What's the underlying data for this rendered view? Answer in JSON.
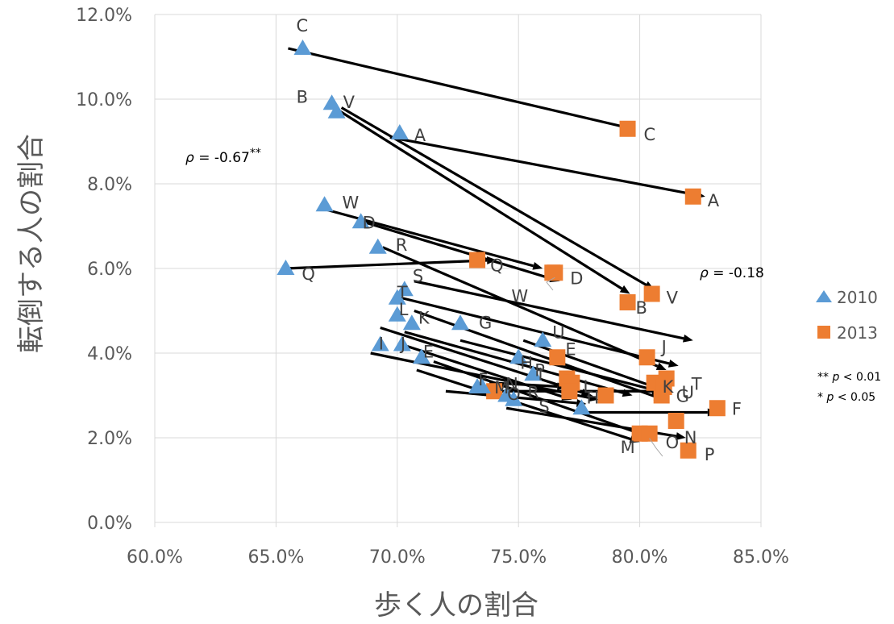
{
  "chart_data": {
    "type": "scatter",
    "xlabel": "歩く人の割合",
    "ylabel": "転倒する人の割合",
    "xlim": [
      0.6,
      0.85
    ],
    "ylim": [
      0.0,
      0.12
    ],
    "x_ticks": [
      "60.0%",
      "65.0%",
      "70.0%",
      "75.0%",
      "80.0%",
      "85.0%"
    ],
    "y_ticks": [
      "0.0%",
      "2.0%",
      "4.0%",
      "6.0%",
      "8.0%",
      "10.0%",
      "12.0%"
    ],
    "grid": "horizontal and vertical",
    "legend_position": "right",
    "colors": {
      "2010": "#5b9bd5",
      "2013": "#ed7d31",
      "arrow": "#000000"
    },
    "series": [
      {
        "name": "2010",
        "marker": "triangle",
        "points": [
          {
            "label": "A",
            "x": 0.701,
            "y": 0.092
          },
          {
            "label": "B",
            "x": 0.673,
            "y": 0.099
          },
          {
            "label": "C",
            "x": 0.661,
            "y": 0.112
          },
          {
            "label": "D",
            "x": 0.685,
            "y": 0.071
          },
          {
            "label": "E",
            "x": 0.71,
            "y": 0.039
          },
          {
            "label": "F",
            "x": 0.735,
            "y": 0.032
          },
          {
            "label": "G",
            "x": 0.726,
            "y": 0.047
          },
          {
            "label": "H",
            "x": 0.75,
            "y": 0.039
          },
          {
            "label": "I",
            "x": 0.693,
            "y": 0.042
          },
          {
            "label": "J",
            "x": 0.702,
            "y": 0.042
          },
          {
            "label": "K",
            "x": 0.706,
            "y": 0.047
          },
          {
            "label": "L",
            "x": 0.7,
            "y": 0.049
          },
          {
            "label": "M",
            "x": 0.733,
            "y": 0.032
          },
          {
            "label": "N",
            "x": 0.745,
            "y": 0.03
          },
          {
            "label": "O",
            "x": 0.748,
            "y": 0.029
          },
          {
            "label": "P",
            "x": 0.756,
            "y": 0.035
          },
          {
            "label": "Q",
            "x": 0.654,
            "y": 0.06
          },
          {
            "label": "R",
            "x": 0.692,
            "y": 0.065
          },
          {
            "label": "S",
            "x": 0.703,
            "y": 0.055
          },
          {
            "label": "T",
            "x": 0.7,
            "y": 0.053
          },
          {
            "label": "U",
            "x": 0.76,
            "y": 0.043
          },
          {
            "label": "V",
            "x": 0.675,
            "y": 0.097
          },
          {
            "label": "W",
            "x": 0.67,
            "y": 0.075
          },
          {
            "label": "",
            "x": 0.776,
            "y": 0.027
          }
        ]
      },
      {
        "name": "2013",
        "marker": "square",
        "points": [
          {
            "label": "A",
            "x": 0.822,
            "y": 0.077
          },
          {
            "label": "B",
            "x": 0.795,
            "y": 0.052
          },
          {
            "label": "C",
            "x": 0.795,
            "y": 0.093
          },
          {
            "label": "D",
            "x": 0.764,
            "y": 0.059
          },
          {
            "label": "E",
            "x": 0.766,
            "y": 0.039
          },
          {
            "label": "F",
            "x": 0.832,
            "y": 0.027
          },
          {
            "label": "G",
            "x": 0.809,
            "y": 0.03
          },
          {
            "label": "H",
            "x": 0.786,
            "y": 0.03
          },
          {
            "label": "I",
            "x": 0.77,
            "y": 0.034
          },
          {
            "label": "J",
            "x": 0.803,
            "y": 0.039
          },
          {
            "label": "K",
            "x": 0.806,
            "y": 0.033
          },
          {
            "label": "L",
            "x": 0.772,
            "y": 0.033
          },
          {
            "label": "M",
            "x": 0.8,
            "y": 0.021
          },
          {
            "label": "N",
            "x": 0.815,
            "y": 0.024
          },
          {
            "label": "O",
            "x": 0.804,
            "y": 0.021
          },
          {
            "label": "P",
            "x": 0.82,
            "y": 0.017
          },
          {
            "label": "Q",
            "x": 0.733,
            "y": 0.062
          },
          {
            "label": "R",
            "x": 0.771,
            "y": 0.032
          },
          {
            "label": "S",
            "x": 0.771,
            "y": 0.031
          },
          {
            "label": "T",
            "x": 0.811,
            "y": 0.034
          },
          {
            "label": "U",
            "x": 0.81,
            "y": 0.032
          },
          {
            "label": "V",
            "x": 0.805,
            "y": 0.054
          },
          {
            "label": "W",
            "x": 0.765,
            "y": 0.059
          },
          {
            "label": "",
            "x": 0.74,
            "y": 0.031
          }
        ]
      }
    ],
    "arrows": [
      {
        "label": "A",
        "from": [
          0.697,
          0.091
        ],
        "to": [
          0.827,
          0.077
        ]
      },
      {
        "label": "B",
        "from": [
          0.674,
          0.098
        ],
        "to": [
          0.796,
          0.054
        ]
      },
      {
        "label": "C",
        "from": [
          0.655,
          0.112
        ],
        "to": [
          0.797,
          0.093
        ]
      },
      {
        "label": "D",
        "from": [
          0.686,
          0.071
        ],
        "to": [
          0.767,
          0.057
        ]
      },
      {
        "label": "E",
        "from": [
          0.689,
          0.04
        ],
        "to": [
          0.783,
          0.029
        ]
      },
      {
        "label": "F",
        "from": [
          0.776,
          0.026
        ],
        "to": [
          0.832,
          0.026
        ]
      },
      {
        "label": "G",
        "from": [
          0.726,
          0.043
        ],
        "to": [
          0.808,
          0.031
        ]
      },
      {
        "label": "H",
        "from": [
          0.736,
          0.031
        ],
        "to": [
          0.809,
          0.031
        ]
      },
      {
        "label": "I",
        "from": [
          0.693,
          0.046
        ],
        "to": [
          0.78,
          0.03
        ]
      },
      {
        "label": "J",
        "from": [
          0.702,
          0.042
        ],
        "to": [
          0.772,
          0.029
        ]
      },
      {
        "label": "K",
        "from": [
          0.707,
          0.05
        ],
        "to": [
          0.81,
          0.029
        ]
      },
      {
        "label": "L",
        "from": [
          0.703,
          0.045
        ],
        "to": [
          0.797,
          0.03
        ]
      },
      {
        "label": "M",
        "from": [
          0.708,
          0.036
        ],
        "to": [
          0.8,
          0.019
        ]
      },
      {
        "label": "N",
        "from": [
          0.738,
          0.033
        ],
        "to": [
          0.77,
          0.032
        ]
      },
      {
        "label": "O",
        "from": [
          0.715,
          0.038
        ],
        "to": [
          0.805,
          0.02
        ]
      },
      {
        "label": "P",
        "from": [
          0.745,
          0.027
        ],
        "to": [
          0.819,
          0.02
        ]
      },
      {
        "label": "Q",
        "from": [
          0.654,
          0.06
        ],
        "to": [
          0.741,
          0.062
        ]
      },
      {
        "label": "R",
        "from": [
          0.694,
          0.065
        ],
        "to": [
          0.811,
          0.036
        ]
      },
      {
        "label": "S",
        "from": [
          0.707,
          0.057
        ],
        "to": [
          0.822,
          0.043
        ]
      },
      {
        "label": "T",
        "from": [
          0.702,
          0.053
        ],
        "to": [
          0.816,
          0.037
        ]
      },
      {
        "label": "U",
        "from": [
          0.752,
          0.043
        ],
        "to": [
          0.811,
          0.031
        ]
      },
      {
        "label": "V",
        "from": [
          0.677,
          0.098
        ],
        "to": [
          0.806,
          0.055
        ]
      },
      {
        "label": "W",
        "from": [
          0.67,
          0.074
        ],
        "to": [
          0.76,
          0.06
        ]
      },
      {
        "label": "",
        "from": [
          0.72,
          0.031
        ],
        "to": [
          0.778,
          0.028
        ]
      }
    ],
    "annotations": {
      "rho_2010": "ρ = -0.67**",
      "rho_2013": "ρ = -0.18",
      "sig_1": "** p < 0.01",
      "sig_2": "*   p < 0.05"
    }
  }
}
